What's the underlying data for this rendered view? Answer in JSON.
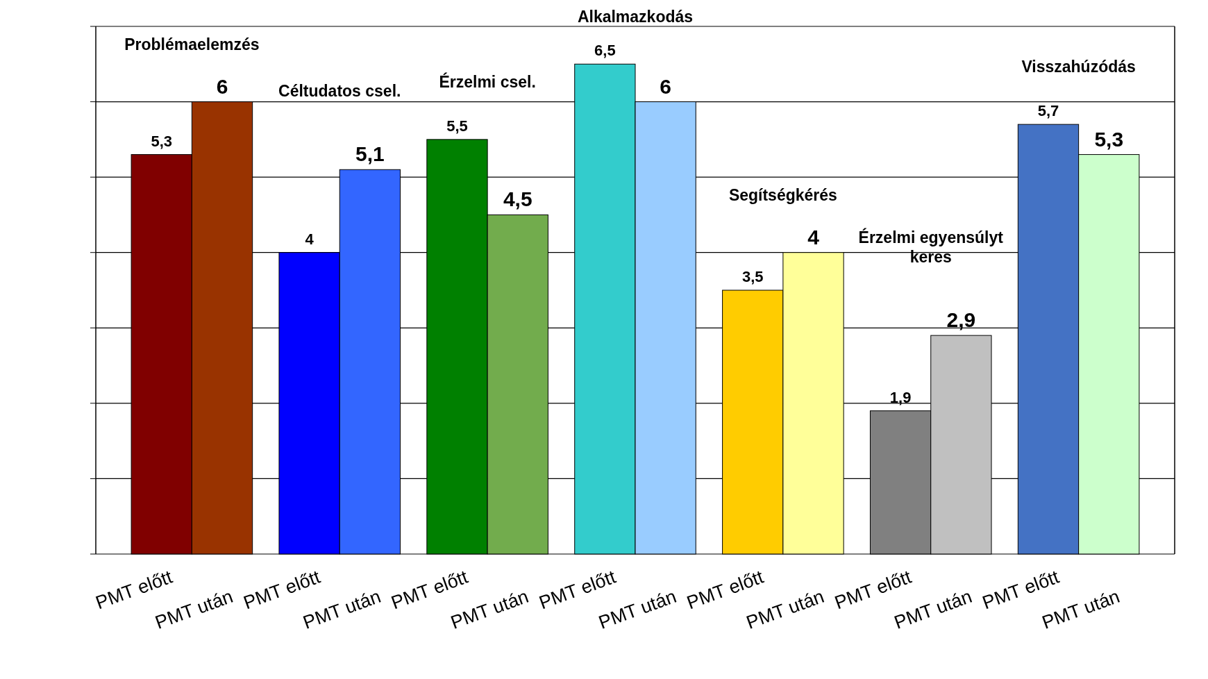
{
  "chart_data": {
    "type": "bar",
    "categories": [
      "PMT előtt",
      "PMT után",
      "PMT előtt",
      "PMT után",
      "PMT előtt",
      "PMT után",
      "PMT előtt",
      "PMT után",
      "PMT előtt",
      "PMT után",
      "PMT előtt",
      "PMT után",
      "PMT előtt",
      "PMT után"
    ],
    "values": [
      5.3,
      6,
      4,
      5.1,
      5.5,
      4.5,
      6.5,
      6,
      3.5,
      4,
      1.9,
      2.9,
      5.7,
      5.3
    ],
    "value_labels": [
      "5,3",
      "6",
      "4",
      "5,1",
      "5,5",
      "4,5",
      "6,5",
      "6",
      "3,5",
      "4",
      "1,9",
      "2,9",
      "5,7",
      "5,3"
    ],
    "colors": [
      "#800000",
      "#993300",
      "#0000ff",
      "#3366ff",
      "#008000",
      "#72ac4d",
      "#33cccc",
      "#99ccff",
      "#ffcc00",
      "#ffff99",
      "#808080",
      "#c0c0c0",
      "#4472c4",
      "#ccffcc"
    ],
    "annotations": [
      "Problémaelemzés",
      "Céltudatos csel.",
      "Érzelmi csel.",
      "Alkalmazkodás",
      "Segítségkérés",
      "Érzelmi egyensúlyt keres",
      "Visszahúzódás"
    ],
    "ylim": [
      0,
      7
    ],
    "yticks": [
      {
        "value": 0,
        "label": null
      },
      {
        "value": 1,
        "label": null
      },
      {
        "value": 2,
        "label": null
      },
      {
        "value": 3,
        "label": null
      },
      {
        "value": 4,
        "label": null
      },
      {
        "value": 5,
        "label": null
      },
      {
        "value": 6,
        "label": null
      },
      {
        "value": 7,
        "label": null
      }
    ],
    "tick_labels": "x",
    "grid": "y"
  }
}
